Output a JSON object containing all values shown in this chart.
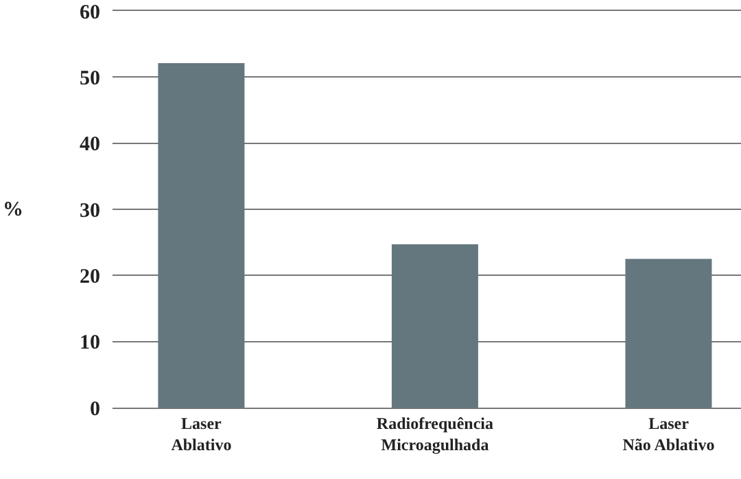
{
  "chart_data": {
    "type": "bar",
    "ylabel": "%",
    "categories": [
      "Laser\nAblativo",
      "Radiofrequência\nMicroagulhada",
      "Laser\nNão Ablativo"
    ],
    "values": [
      52.1,
      24.7,
      22.5
    ],
    "color": "#64777f",
    "ylim": [
      0,
      60
    ],
    "yticks": [
      0,
      10,
      20,
      30,
      40,
      50,
      60
    ],
    "grid": "y"
  }
}
